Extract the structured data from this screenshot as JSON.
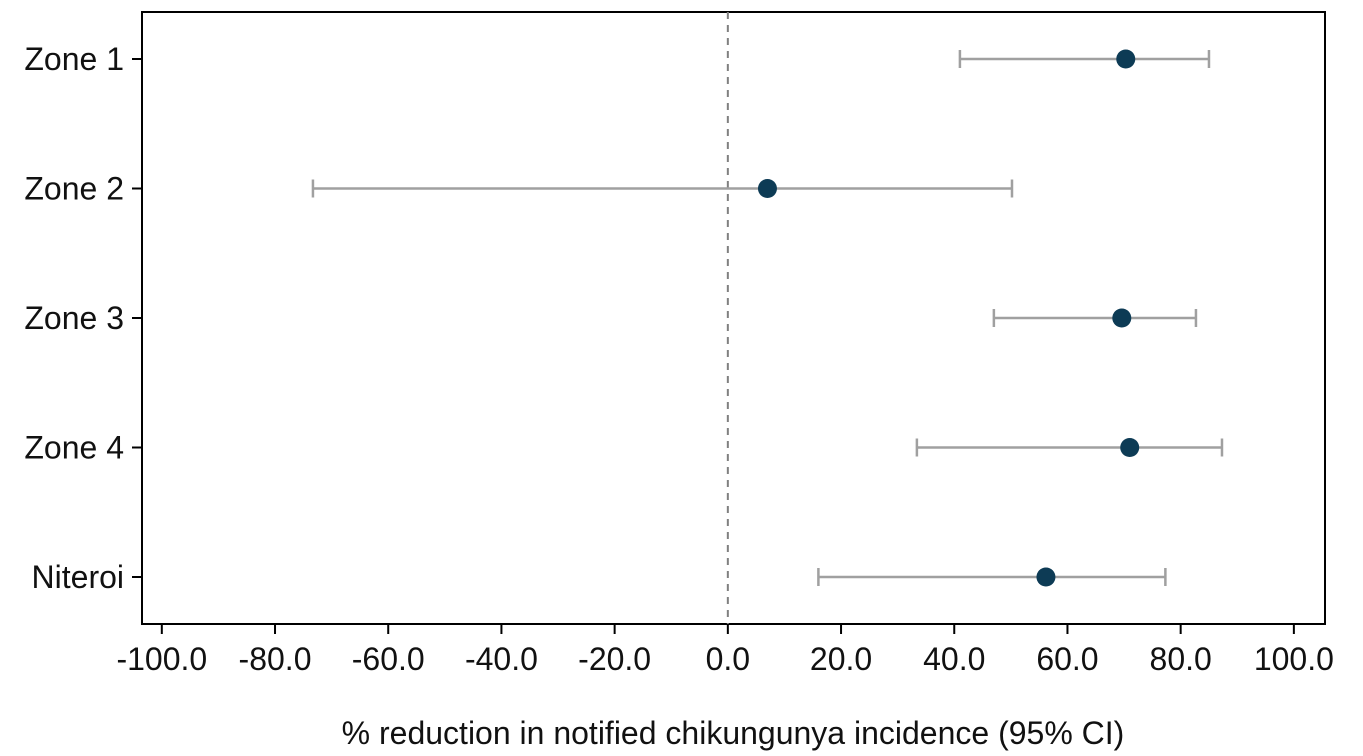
{
  "chart_data": {
    "type": "scatter",
    "subtype": "forest-plot",
    "categories": [
      "Zone 1",
      "Zone 2",
      "Zone 3",
      "Zone 4",
      "Niteroi"
    ],
    "estimates": [
      70.3,
      7.0,
      69.6,
      71.0,
      56.2
    ],
    "ci_lower": [
      41.0,
      -73.3,
      47.0,
      33.4,
      16.0
    ],
    "ci_upper": [
      85.0,
      50.2,
      82.7,
      87.3,
      77.3
    ],
    "xlabel": "% reduction in notified chikungunya incidence (95% CI)",
    "ylabel": "",
    "xlim": [
      -103.5,
      105.5
    ],
    "xticks": [
      "-100.0",
      "-80.0",
      "-60.0",
      "-40.0",
      "-20.0",
      "0.0",
      "20.0",
      "40.0",
      "60.0",
      "80.0",
      "100.0"
    ],
    "reference_line": 0,
    "grid": false,
    "legend": "none",
    "colors": {
      "point": "#0d3b55",
      "ci": "#a0a0a0",
      "reference": "#808080",
      "frame": "#000000"
    }
  }
}
